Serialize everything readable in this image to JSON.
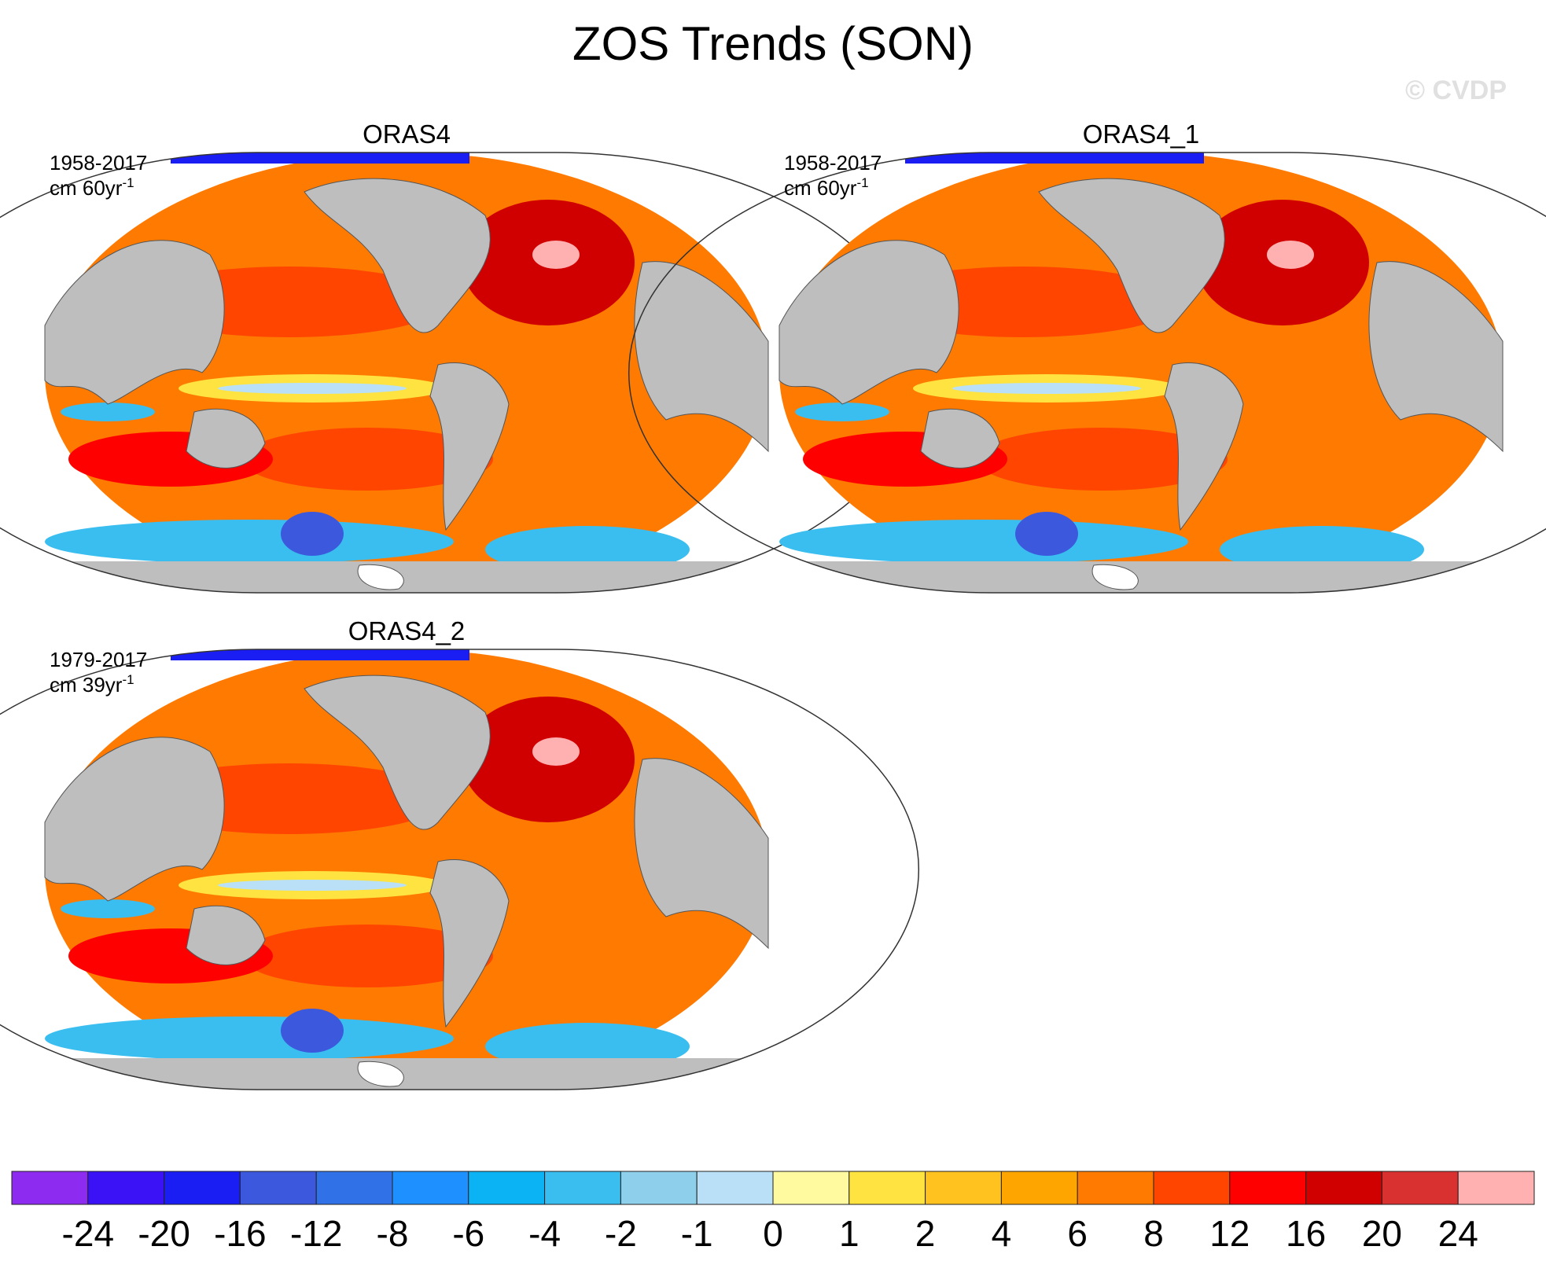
{
  "header": {
    "title": "ZOS Trends (SON)",
    "watermark": "© CVDP"
  },
  "panels": [
    {
      "title": "ORAS4",
      "period": "1958-2017",
      "unit": "cm 60yr",
      "unit_exp": "-1"
    },
    {
      "title": "ORAS4_1",
      "period": "1958-2017",
      "unit": "cm 60yr",
      "unit_exp": "-1"
    },
    {
      "title": "ORAS4_2",
      "period": "1979-2017",
      "unit": "cm 39yr",
      "unit_exp": "-1"
    }
  ],
  "colorbar": {
    "colors": [
      "#8d2cf0",
      "#3a12f5",
      "#1b1ef2",
      "#3c59de",
      "#3071e8",
      "#1e90ff",
      "#0bb3f5",
      "#3abef0",
      "#8ecfeb",
      "#b9e0f6",
      "#fff9a0",
      "#ffe340",
      "#ffc21e",
      "#ffa500",
      "#ff7a00",
      "#ff4500",
      "#ff0000",
      "#d10000",
      "#d93030",
      "#ffb0b0"
    ],
    "labels": [
      -24,
      -20,
      -16,
      -12,
      -8,
      -6,
      -4,
      -2,
      -1,
      0,
      1,
      2,
      4,
      6,
      8,
      12,
      16,
      20,
      24
    ]
  }
}
